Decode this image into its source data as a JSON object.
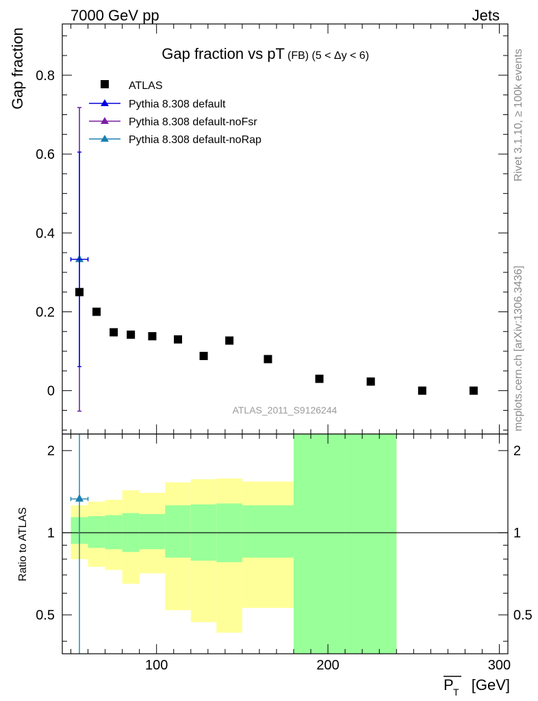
{
  "header": {
    "left": "7000 GeV pp",
    "right": "Jets"
  },
  "side": {
    "rivet": "Rivet 3.1.10, ≥ 100k events",
    "mcplots": "mcplots.cern.ch [arXiv:1306.3436]"
  },
  "chart_data": [
    {
      "type": "scatter",
      "title": "Gap fraction vs pT",
      "title_suffix": "(FB) (5 < Δy < 6)",
      "xlabel": "P̅T [GeV]",
      "ylabel": "Gap fraction",
      "xlim": [
        45,
        305
      ],
      "ylim": [
        -0.11,
        0.93
      ],
      "yticks": [
        0,
        0.2,
        0.4,
        0.6,
        0.8
      ],
      "xticks": [
        100,
        200,
        300
      ],
      "watermark": "ATLAS_2011_S9126244",
      "legend_position": "top-left",
      "series": [
        {
          "name": "ATLAS",
          "color": "#000000",
          "marker": "square",
          "x": [
            55,
            65,
            75,
            85,
            97.5,
            112.5,
            127.5,
            142.5,
            165,
            195,
            225,
            255,
            285
          ],
          "y": [
            0.25,
            0.2,
            0.148,
            0.142,
            0.138,
            0.13,
            0.088,
            0.127,
            0.08,
            0.03,
            0.023,
            0.0,
            0.0
          ]
        },
        {
          "name": "Pythia 8.308 default",
          "color": "#0000dd",
          "marker": "triangle",
          "x": [
            55
          ],
          "y": [
            0.333
          ],
          "yerr_low": [
            0.272
          ],
          "yerr_high": [
            0.272
          ],
          "xerr": [
            5
          ]
        },
        {
          "name": "Pythia 8.308 default-noFsr",
          "color": "#7a1fa2",
          "marker": "triangle",
          "x": [
            55
          ],
          "y": [
            0.333
          ],
          "yerr_low": [
            0.385
          ],
          "yerr_high": [
            0.385
          ],
          "xerr": [
            5
          ]
        },
        {
          "name": "Pythia 8.308 default-noRap",
          "color": "#1a7fb0",
          "marker": "triangle",
          "x": [
            55
          ],
          "y": [
            0.333
          ],
          "yerr_low": [
            0.385
          ],
          "yerr_high": [
            0.385
          ],
          "xerr": [
            5
          ]
        }
      ]
    },
    {
      "type": "area",
      "ylabel": "Ratio to ATLAS",
      "xlim": [
        45,
        305
      ],
      "ylim": [
        0.36,
        2.3
      ],
      "yticks": [
        0.5,
        1,
        2
      ],
      "xticks": [
        100,
        200,
        300
      ],
      "bands": {
        "edges": [
          50,
          60,
          70,
          80,
          90,
          105,
          120,
          135,
          150,
          180,
          210,
          240
        ],
        "yellow_low": [
          0.8,
          0.75,
          0.73,
          0.65,
          0.71,
          0.52,
          0.47,
          0.43,
          0.53,
          0.36,
          0.36
        ],
        "yellow_high": [
          1.26,
          1.3,
          1.32,
          1.43,
          1.4,
          1.53,
          1.57,
          1.58,
          1.54,
          2.3,
          2.3
        ],
        "green_low": [
          0.91,
          0.88,
          0.87,
          0.85,
          0.87,
          0.81,
          0.79,
          0.78,
          0.81,
          0.36,
          0.36
        ],
        "green_high": [
          1.14,
          1.15,
          1.16,
          1.18,
          1.17,
          1.26,
          1.27,
          1.28,
          1.26,
          2.3,
          2.3
        ]
      },
      "series": [
        {
          "name": "Pythia 8.308 default-noRap",
          "color": "#1a7fb0",
          "marker": "triangle",
          "x": [
            55
          ],
          "y": [
            1.33
          ],
          "yerr_low": [
            1.0
          ],
          "yerr_high": [
            1.0
          ],
          "xerr": [
            5
          ]
        }
      ]
    }
  ],
  "colors": {
    "yellow_band": "#ffff99",
    "green_band": "#99ff99"
  }
}
